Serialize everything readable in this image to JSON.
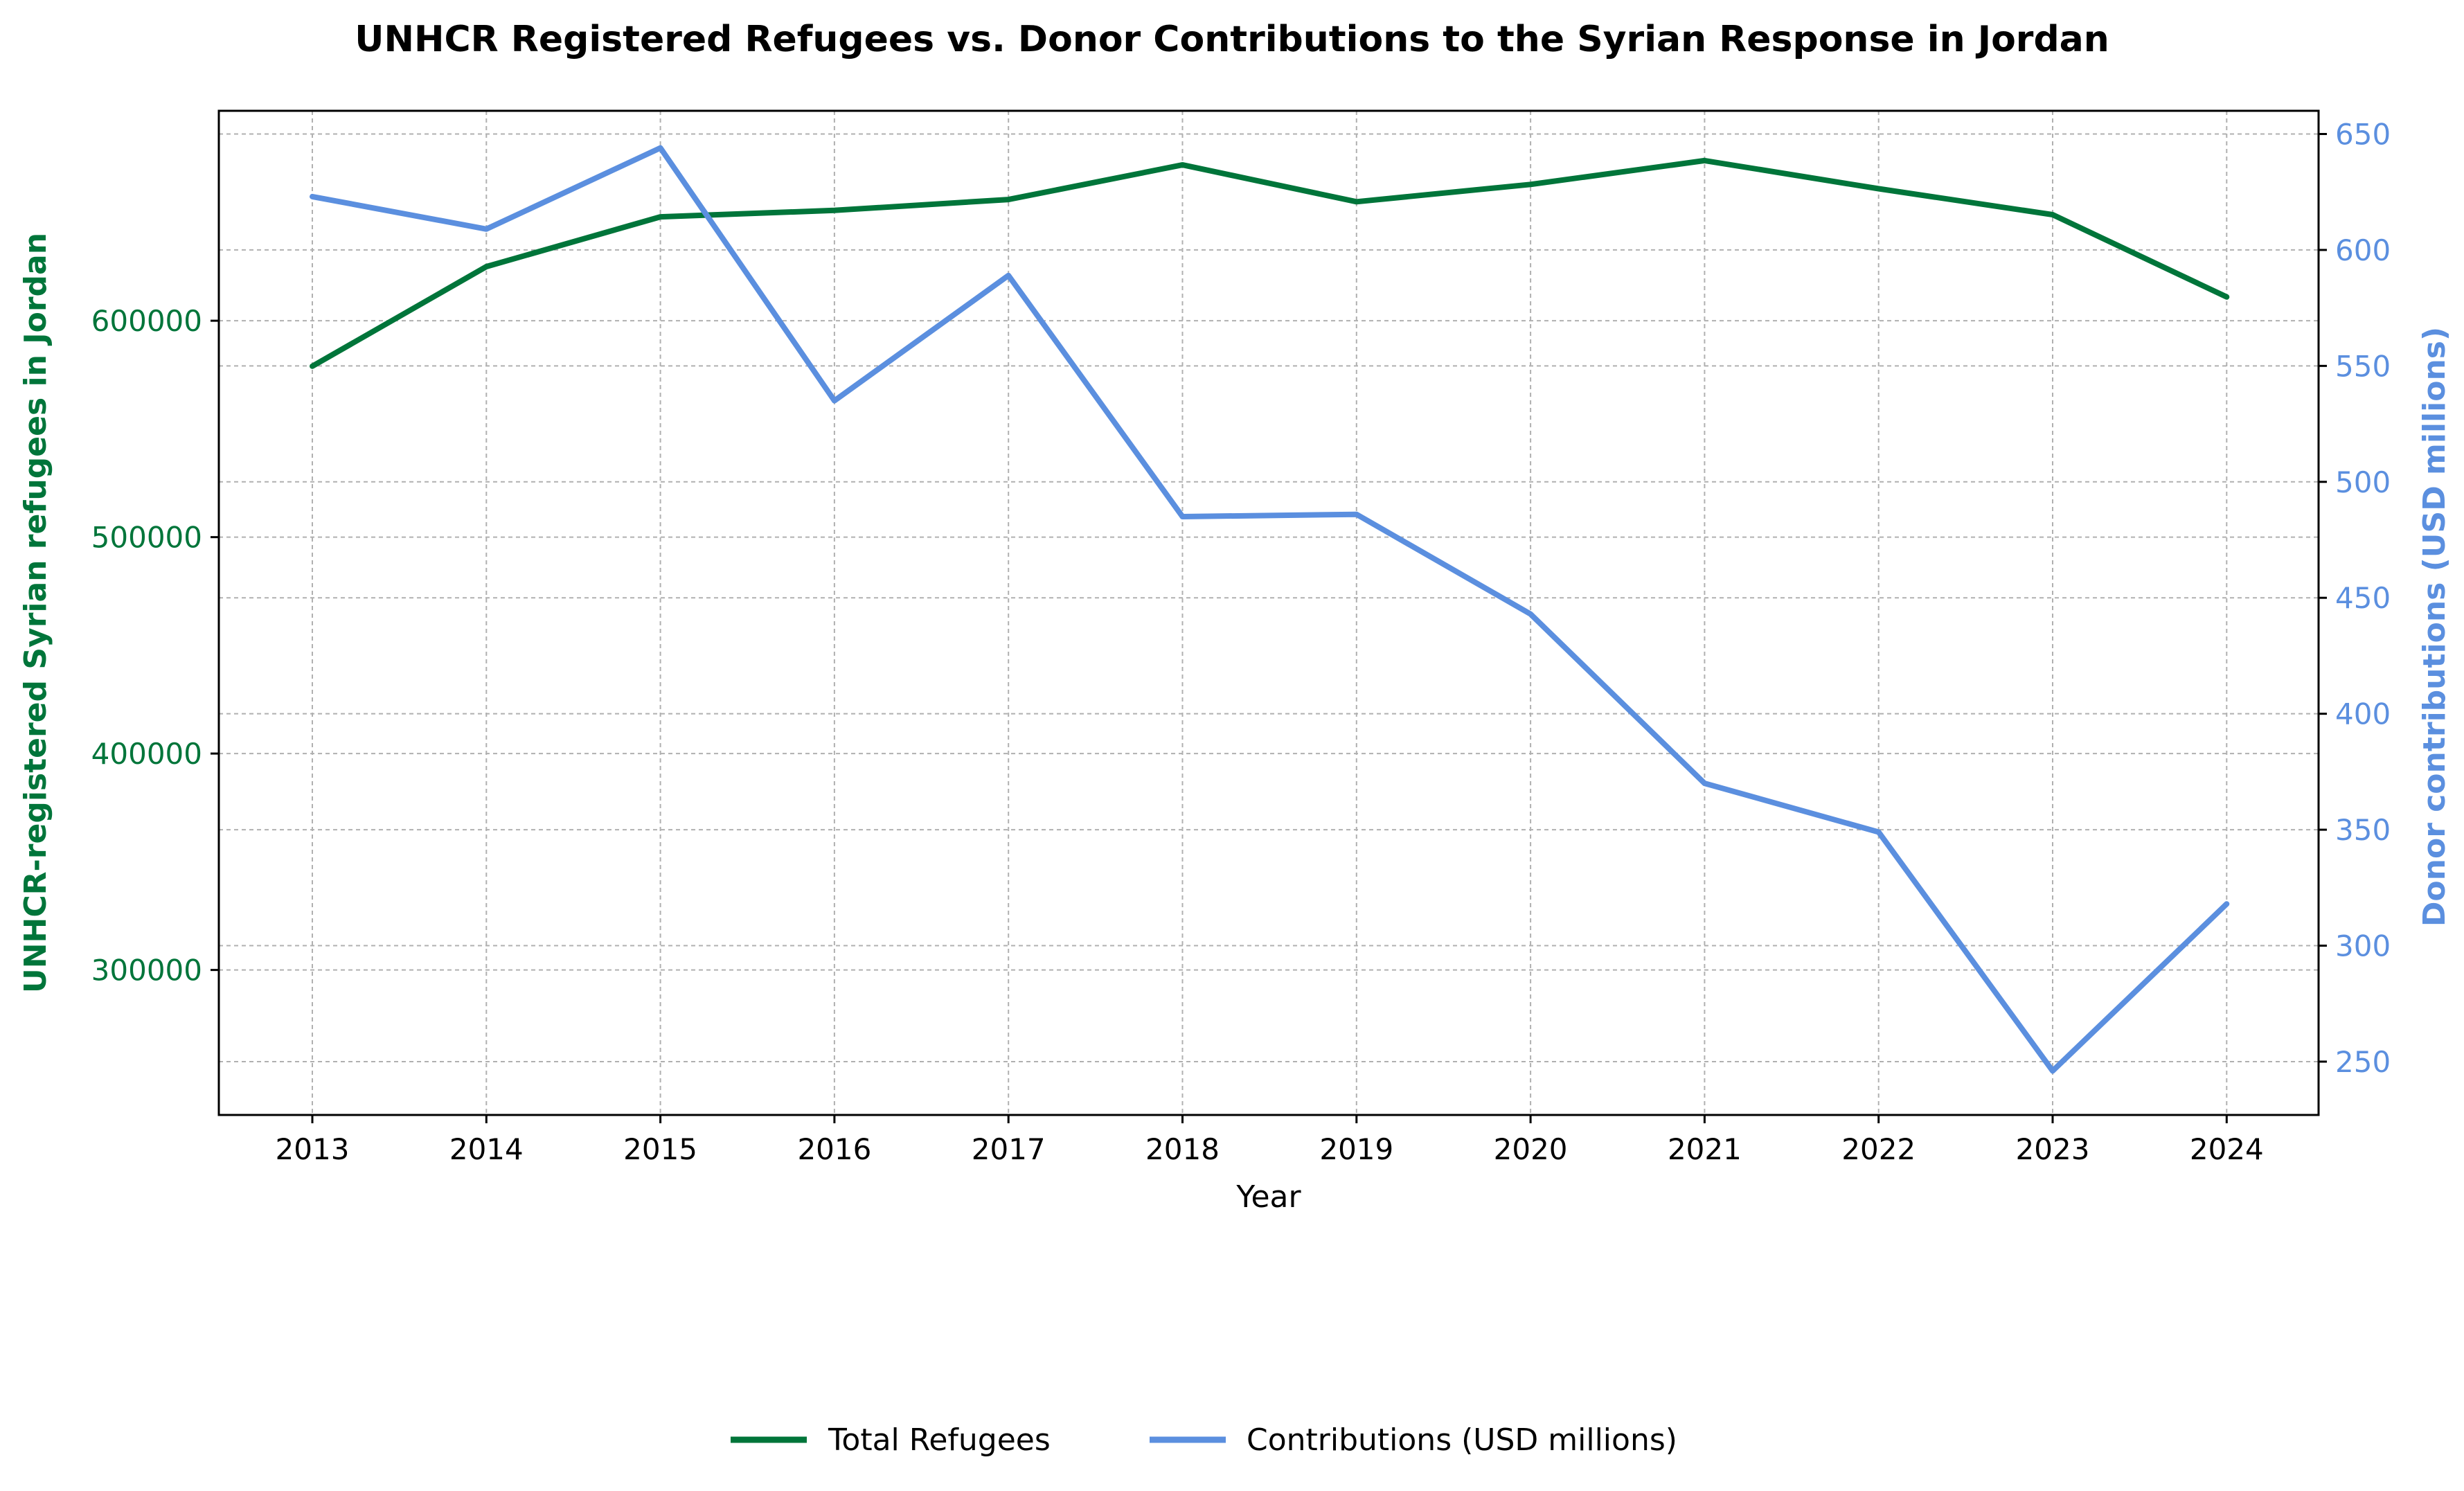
{
  "colors": {
    "refugees": "#00753a",
    "contributions": "#5b8fdf",
    "grid": "#b0b0b0",
    "axis": "#000000"
  },
  "chart_data": {
    "type": "line",
    "title": "UNHCR Registered Refugees vs. Donor Contributions to the Syrian Response in Jordan",
    "xlabel": "Year",
    "ylabel_left": "UNHCR-registered Syrian refugees in Jordan",
    "ylabel_right": "Donor contributions (USD millions)",
    "x": [
      2013,
      2014,
      2015,
      2016,
      2017,
      2018,
      2019,
      2020,
      2021,
      2022,
      2023,
      2024
    ],
    "xticks": [
      "2013",
      "2014",
      "2015",
      "2016",
      "2017",
      "2018",
      "2019",
      "2020",
      "2021",
      "2022",
      "2023",
      "2024"
    ],
    "ylim_left": [
      233000,
      697000
    ],
    "yticks_left": [
      "300000",
      "400000",
      "500000",
      "600000"
    ],
    "yticks_left_values": [
      300000,
      400000,
      500000,
      600000
    ],
    "ylim_right": [
      227,
      660
    ],
    "yticks_right": [
      "250",
      "300",
      "350",
      "400",
      "450",
      "500",
      "550",
      "600",
      "650"
    ],
    "yticks_right_values": [
      250,
      300,
      350,
      400,
      450,
      500,
      550,
      600,
      650
    ],
    "grid": true,
    "legend_position": "bottom-center",
    "series": [
      {
        "name": "Total Refugees",
        "axis": "left",
        "values": [
          579000,
          625000,
          648000,
          651000,
          656000,
          672000,
          655000,
          663000,
          674000,
          661000,
          649000,
          611000
        ]
      },
      {
        "name": "Contributions (USD millions)",
        "axis": "right",
        "values": [
          623,
          609,
          644,
          535,
          589,
          485,
          486,
          443,
          370,
          349,
          246,
          318
        ]
      }
    ]
  }
}
